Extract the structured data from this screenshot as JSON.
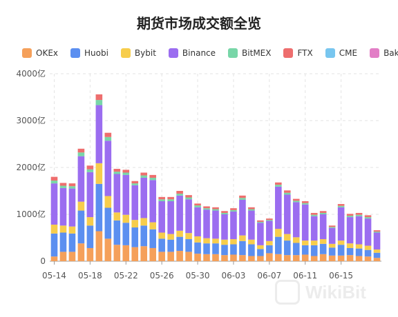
{
  "chart_data": {
    "type": "bar",
    "stacked": true,
    "title": "期货市场成交额全览",
    "y_tick_labels": [
      "0",
      "1000亿",
      "2000亿",
      "3000亿",
      "4000亿"
    ],
    "ylim": [
      0,
      4000
    ],
    "x_tick_labels": [
      "05-14",
      "05-18",
      "05-22",
      "05-26",
      "05-30",
      "06-03",
      "06-07",
      "06-11",
      "06-15"
    ],
    "x_tick_every": 4,
    "grid": true,
    "legend_position": "top-left",
    "categories": [
      "05-14",
      "05-15",
      "05-16",
      "05-17",
      "05-18",
      "05-19",
      "05-20",
      "05-21",
      "05-22",
      "05-23",
      "05-24",
      "05-25",
      "05-26",
      "05-27",
      "05-28",
      "05-29",
      "05-30",
      "05-31",
      "06-01",
      "06-02",
      "06-03",
      "06-04",
      "06-05",
      "06-06",
      "06-07",
      "06-08",
      "06-09",
      "06-10",
      "06-11",
      "06-12",
      "06-13",
      "06-14",
      "06-15",
      "06-16",
      "06-17",
      "06-18",
      "06-19"
    ],
    "series": [
      {
        "name": "OKEx",
        "color": "#f5a05a",
        "values": [
          100,
          200,
          200,
          380,
          280,
          640,
          480,
          350,
          340,
          300,
          320,
          280,
          200,
          200,
          220,
          200,
          160,
          150,
          150,
          130,
          140,
          130,
          110,
          110,
          170,
          150,
          130,
          130,
          140,
          110,
          150,
          120,
          120,
          130,
          110,
          100,
          70
        ]
      },
      {
        "name": "Huobi",
        "color": "#5b8ff0",
        "values": [
          490,
          410,
          390,
          700,
          480,
          1010,
          660,
          520,
          480,
          420,
          440,
          400,
          280,
          260,
          300,
          270,
          240,
          230,
          230,
          220,
          220,
          300,
          250,
          150,
          170,
          370,
          310,
          260,
          200,
          230,
          220,
          170,
          230,
          150,
          160,
          140,
          110
        ]
      },
      {
        "name": "Bybit",
        "color": "#f7cd4c",
        "values": [
          190,
          150,
          150,
          190,
          180,
          440,
          250,
          170,
          170,
          160,
          160,
          150,
          130,
          120,
          130,
          130,
          130,
          110,
          100,
          110,
          110,
          120,
          100,
          80,
          90,
          170,
          140,
          120,
          100,
          100,
          100,
          80,
          90,
          100,
          90,
          90,
          70
        ]
      },
      {
        "name": "Binance",
        "color": "#9b6df0",
        "values": [
          880,
          800,
          810,
          970,
          960,
          1240,
          1180,
          820,
          850,
          740,
          860,
          900,
          670,
          700,
          750,
          720,
          620,
          610,
          600,
          540,
          590,
          760,
          620,
          480,
          430,
          900,
          840,
          750,
          770,
          520,
          530,
          340,
          710,
          560,
          600,
          580,
          360
        ]
      },
      {
        "name": "BitMEX",
        "color": "#78d6a8",
        "values": [
          60,
          50,
          50,
          80,
          60,
          110,
          80,
          50,
          50,
          40,
          50,
          50,
          40,
          40,
          40,
          40,
          40,
          30,
          30,
          30,
          30,
          40,
          30,
          20,
          20,
          40,
          40,
          30,
          30,
          30,
          30,
          20,
          30,
          30,
          30,
          30,
          20
        ]
      },
      {
        "name": "FTX",
        "color": "#ee6e6e",
        "values": [
          80,
          60,
          60,
          80,
          80,
          120,
          90,
          60,
          60,
          50,
          60,
          60,
          50,
          50,
          60,
          50,
          40,
          40,
          40,
          40,
          40,
          50,
          40,
          30,
          30,
          50,
          50,
          40,
          40,
          40,
          40,
          30,
          40,
          40,
          40,
          40,
          30
        ]
      },
      {
        "name": "CME",
        "color": "#78c6ef",
        "values": [
          0,
          0,
          0,
          0,
          0,
          0,
          0,
          0,
          0,
          0,
          0,
          0,
          0,
          0,
          0,
          0,
          0,
          0,
          0,
          0,
          0,
          0,
          0,
          0,
          0,
          0,
          0,
          0,
          0,
          0,
          0,
          0,
          0,
          0,
          0,
          0,
          0
        ]
      },
      {
        "name": "Bakkt",
        "color": "#e27ec6",
        "values": [
          0,
          0,
          0,
          0,
          0,
          0,
          0,
          0,
          0,
          0,
          0,
          0,
          0,
          0,
          0,
          0,
          0,
          0,
          0,
          0,
          0,
          0,
          0,
          0,
          0,
          0,
          0,
          0,
          0,
          0,
          0,
          0,
          0,
          0,
          0,
          0,
          0
        ]
      }
    ]
  },
  "watermark_text": "WikiBit"
}
